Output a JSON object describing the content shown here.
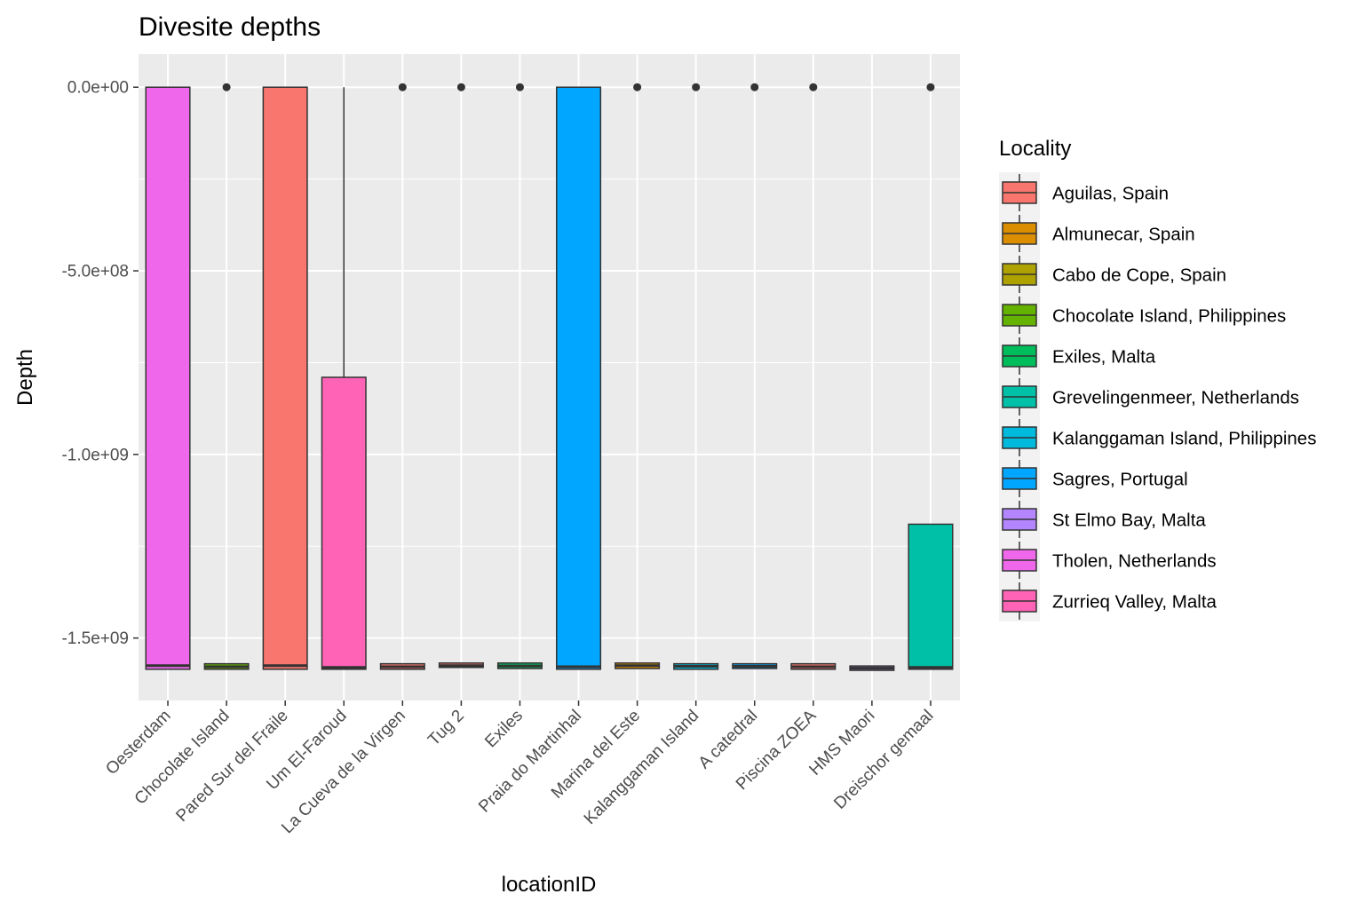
{
  "chart_data": {
    "type": "boxplot",
    "title": "Divesite depths",
    "xlabel": "locationID",
    "ylabel": "Depth",
    "ylim": [
      -1670000000.0,
      90000000.0
    ],
    "yticks": [
      {
        "value": 0,
        "label": "0.0e+00"
      },
      {
        "value": -500000000,
        "label": "-5.0e+08"
      },
      {
        "value": -1000000000,
        "label": "-1.0e+09"
      },
      {
        "value": -1500000000,
        "label": "-1.5e+09"
      }
    ],
    "grid": true,
    "legend": {
      "title": "Locality",
      "position": "right",
      "entries": [
        {
          "label": "Aguilas, Spain",
          "color": "#F8766D"
        },
        {
          "label": "Almunecar, Spain",
          "color": "#DB8E00"
        },
        {
          "label": "Cabo de Cope, Spain",
          "color": "#AEA200"
        },
        {
          "label": "Chocolate Island, Philippines",
          "color": "#64B200"
        },
        {
          "label": "Exiles, Malta",
          "color": "#00BD5C"
        },
        {
          "label": "Grevelingenmeer, Netherlands",
          "color": "#00C1A7"
        },
        {
          "label": "Kalanggaman Island, Philippines",
          "color": "#00BADE"
        },
        {
          "label": "Sagres, Portugal",
          "color": "#00A6FF"
        },
        {
          "label": "St Elmo Bay, Malta",
          "color": "#B385FF"
        },
        {
          "label": "Tholen, Netherlands",
          "color": "#EF67EB"
        },
        {
          "label": "Zurrieq Valley, Malta",
          "color": "#FF63B6"
        }
      ]
    },
    "categories": [
      "Oesterdam",
      "Chocolate Island",
      "Pared Sur del Fraile",
      "Um El-Faroud",
      "La Cueva de la Virgen",
      "Tug 2",
      "Exiles",
      "Praia do Martinhal",
      "Marina del Este",
      "Kalanggaman Island",
      "A catedral",
      "Piscina ZOEA",
      "HMS Maori",
      "Dreischor gemaal"
    ],
    "boxes": [
      {
        "category": "Oesterdam",
        "color": "#EF67EB",
        "lower": -1585000000.0,
        "q1": -1585000000.0,
        "median": -1575000000.0,
        "q3": 0,
        "upper": 0,
        "outliers": []
      },
      {
        "category": "Chocolate Island",
        "color": "#64B200",
        "lower": -1585000000.0,
        "q1": -1585000000.0,
        "median": -1578000000.0,
        "q3": -1570000000.0,
        "upper": -1570000000.0,
        "outliers": [
          0
        ]
      },
      {
        "category": "Pared Sur del Fraile",
        "color": "#F8766D",
        "lower": -1585000000.0,
        "q1": -1585000000.0,
        "median": -1575000000.0,
        "q3": 0,
        "upper": 0,
        "outliers": []
      },
      {
        "category": "Um El-Faroud",
        "color": "#FF63B6",
        "lower": -1585000000.0,
        "q1": -1585000000.0,
        "median": -1580000000.0,
        "q3": -790000000.0,
        "upper": 0,
        "outliers": []
      },
      {
        "category": "La Cueva de la Virgen",
        "color": "#F8766D",
        "lower": -1585000000.0,
        "q1": -1585000000.0,
        "median": -1578000000.0,
        "q3": -1570000000.0,
        "upper": -1570000000.0,
        "outliers": [
          0
        ]
      },
      {
        "category": "Tug 2",
        "color": "#F8766D",
        "lower": -1580000000.0,
        "q1": -1580000000.0,
        "median": -1575000000.0,
        "q3": -1568000000.0,
        "upper": -1568000000.0,
        "outliers": [
          0
        ]
      },
      {
        "category": "Exiles",
        "color": "#00BD5C",
        "lower": -1583000000.0,
        "q1": -1583000000.0,
        "median": -1576000000.0,
        "q3": -1568000000.0,
        "upper": -1568000000.0,
        "outliers": [
          0
        ]
      },
      {
        "category": "Praia do Martinhal",
        "color": "#00A6FF",
        "lower": -1585000000.0,
        "q1": -1585000000.0,
        "median": -1578000000.0,
        "q3": 0,
        "upper": 0,
        "outliers": []
      },
      {
        "category": "Marina del Este",
        "color": "#DB8E00",
        "lower": -1583000000.0,
        "q1": -1583000000.0,
        "median": -1575000000.0,
        "q3": -1568000000.0,
        "upper": -1568000000.0,
        "outliers": [
          0
        ]
      },
      {
        "category": "Kalanggaman Island",
        "color": "#00BADE",
        "lower": -1585000000.0,
        "q1": -1585000000.0,
        "median": -1577000000.0,
        "q3": -1570000000.0,
        "upper": -1570000000.0,
        "outliers": [
          0
        ]
      },
      {
        "category": "A catedral",
        "color": "#00A6FF",
        "lower": -1583000000.0,
        "q1": -1583000000.0,
        "median": -1577000000.0,
        "q3": -1570000000.0,
        "upper": -1570000000.0,
        "outliers": [
          0
        ]
      },
      {
        "category": "Piscina ZOEA",
        "color": "#F8766D",
        "lower": -1585000000.0,
        "q1": -1585000000.0,
        "median": -1578000000.0,
        "q3": -1570000000.0,
        "upper": -1570000000.0,
        "outliers": [
          0
        ]
      },
      {
        "category": "HMS Maori",
        "color": "#B385FF",
        "lower": -1588000000.0,
        "q1": -1588000000.0,
        "median": -1582000000.0,
        "q3": -1576000000.0,
        "upper": -1576000000.0,
        "outliers": []
      },
      {
        "category": "Dreischor gemaal",
        "color": "#00C1A7",
        "lower": -1585000000.0,
        "q1": -1585000000.0,
        "median": -1580000000.0,
        "q3": -1190000000.0,
        "upper": -1190000000.0,
        "outliers": [
          0
        ]
      }
    ]
  }
}
